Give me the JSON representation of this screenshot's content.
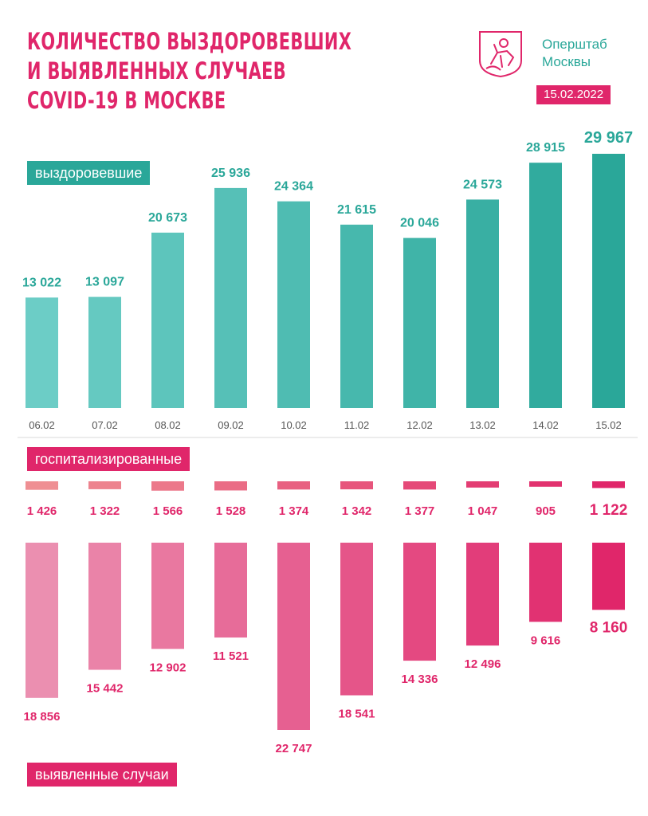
{
  "header": {
    "title_lines": [
      "КОЛИЧЕСТВО ВЫЗДОРОВЕВШИХ",
      "И ВЫЯВЛЕННЫХ СЛУЧАЕВ",
      "COVID-19 В МОСКВЕ"
    ],
    "org_lines": [
      "Оперштаб",
      "Москвы"
    ],
    "date": "15.02.2022",
    "logo_icon": "moscow-coat-of-arms-icon"
  },
  "colors": {
    "teal": "#2aa799",
    "teal_light": "#6ccdc6",
    "pink": "#e0266a",
    "pink_light": "#eb8fb0",
    "separator": "#d9d9d9"
  },
  "chart_data": {
    "type": "bar",
    "categories": [
      "06.02",
      "07.02",
      "08.02",
      "09.02",
      "10.02",
      "11.02",
      "12.02",
      "13.02",
      "14.02",
      "15.02"
    ],
    "series": [
      {
        "name": "выздоровевшие",
        "values": [
          13022,
          13097,
          20673,
          25936,
          24364,
          21615,
          20046,
          24573,
          28915,
          29967
        ],
        "labels": [
          "13 022",
          "13 097",
          "20 673",
          "25 936",
          "24 364",
          "21 615",
          "20 046",
          "24 573",
          "28 915",
          "29 967"
        ]
      },
      {
        "name": "госпитализированные",
        "values": [
          1426,
          1322,
          1566,
          1528,
          1374,
          1342,
          1377,
          1047,
          905,
          1122
        ],
        "labels": [
          "1 426",
          "1 322",
          "1 566",
          "1 528",
          "1 374",
          "1 342",
          "1 377",
          "1 047",
          "905",
          "1 122"
        ]
      },
      {
        "name": "выявленные случаи",
        "values": [
          18856,
          15442,
          12902,
          11521,
          22747,
          18541,
          14336,
          12496,
          9616,
          8160
        ],
        "labels": [
          "18 856",
          "15 442",
          "12 902",
          "11 521",
          "22 747",
          "18 541",
          "14 336",
          "12 496",
          "9 616",
          "8 160"
        ]
      }
    ]
  }
}
